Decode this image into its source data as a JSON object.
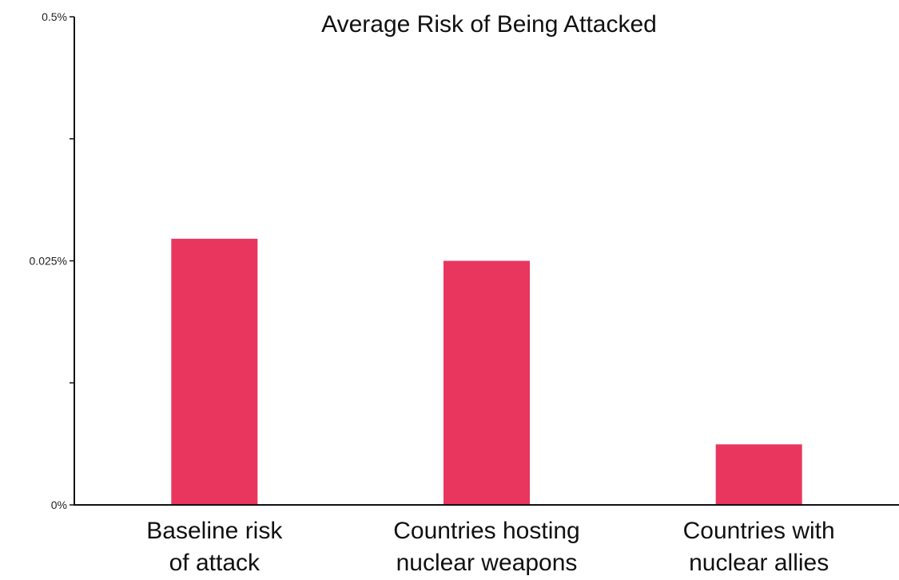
{
  "chart_data": {
    "type": "bar",
    "title": "Average Risk of Being Attacked",
    "xlabel": "",
    "ylabel": "",
    "categories": [
      [
        "Baseline risk",
        "of attack"
      ],
      [
        "Countries hosting",
        "nuclear weapons"
      ],
      [
        "Countries with",
        "nuclear allies"
      ]
    ],
    "y_axis": {
      "scale": "nonlinear",
      "ticks": [
        {
          "label": "0%",
          "value": 0,
          "labeled": true
        },
        {
          "label": "",
          "value": null,
          "labeled": false
        },
        {
          "label": "0.025%",
          "value": 0.025,
          "labeled": true
        },
        {
          "label": "",
          "value": null,
          "labeled": false
        },
        {
          "label": "0.5%",
          "value": 0.5,
          "labeled": true
        }
      ]
    },
    "values": [
      0.068,
      0.025,
      0.0062
    ],
    "bar_color": "#e8365f",
    "grid": false,
    "legend": "none"
  }
}
